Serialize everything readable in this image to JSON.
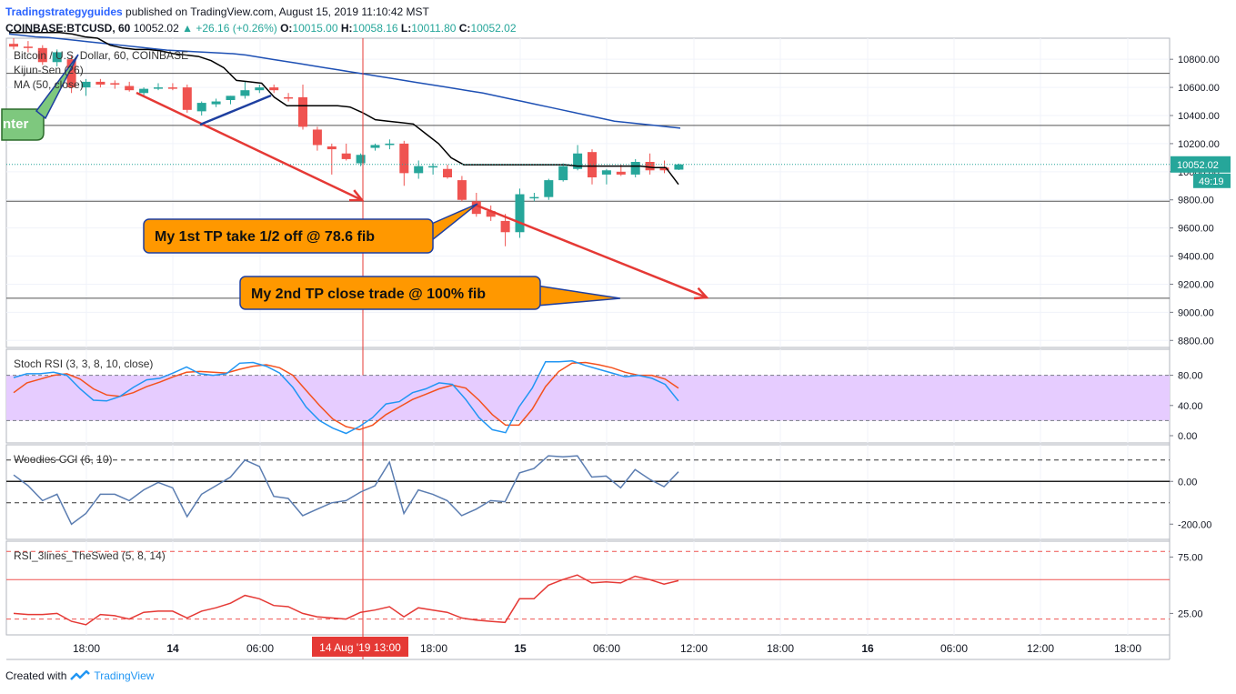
{
  "header": {
    "publisher": "Tradingstrategyguides",
    "published_text": "published on TradingView.com, August 15, 2019 11:10:42 MST",
    "symbol": "COINBASE:BTCUSD, 60",
    "last": "10052.02",
    "change": "+26.16 (+0.26%)",
    "o_label": "O:",
    "o": "10015.00",
    "h_label": "H:",
    "h": "10058.16",
    "l_label": "L:",
    "l": "10011.80",
    "c_label": "C:",
    "c": "10052.02"
  },
  "footer": {
    "created_with": "Created with",
    "brand": "TradingView"
  },
  "colors": {
    "up": "#26a69a",
    "down": "#ef5350",
    "ma": "#1e50b4",
    "kijun": "#000000",
    "orange": "#ff9800",
    "stoch_band": "#e6ccff",
    "arrow": "#e53935"
  },
  "chart_data": [
    {
      "type": "candlestick",
      "title": "Bitcoin / U.S. Dollar, 60, COINBASE",
      "indicators": [
        "Kijun-Sen (26)",
        "MA (50, close)"
      ],
      "ylim": [
        8750,
        10950
      ],
      "y_ticks": [
        "10800.00",
        "10600.00",
        "10400.00",
        "10200.00",
        "10000.00",
        "9800.00",
        "9600.00",
        "9400.00",
        "9200.00",
        "9000.00",
        "8800.00"
      ],
      "last_price_label": "10052.02",
      "countdown_label": "49:19",
      "horizontal_levels": [
        10700,
        10330,
        9790,
        9100
      ],
      "candles": [
        {
          "o": 10910,
          "h": 10950,
          "l": 10870,
          "c": 10890
        },
        {
          "o": 10890,
          "h": 10930,
          "l": 10850,
          "c": 10880
        },
        {
          "o": 10880,
          "h": 10900,
          "l": 10760,
          "c": 10780
        },
        {
          "o": 10780,
          "h": 10870,
          "l": 10750,
          "c": 10850
        },
        {
          "o": 10800,
          "h": 10830,
          "l": 10560,
          "c": 10600
        },
        {
          "o": 10600,
          "h": 10660,
          "l": 10540,
          "c": 10640
        },
        {
          "o": 10640,
          "h": 10660,
          "l": 10600,
          "c": 10620
        },
        {
          "o": 10630,
          "h": 10650,
          "l": 10590,
          "c": 10620
        },
        {
          "o": 10610,
          "h": 10640,
          "l": 10570,
          "c": 10580
        },
        {
          "o": 10560,
          "h": 10600,
          "l": 10540,
          "c": 10590
        },
        {
          "o": 10600,
          "h": 10630,
          "l": 10580,
          "c": 10600
        },
        {
          "o": 10600,
          "h": 10630,
          "l": 10580,
          "c": 10590
        },
        {
          "o": 10600,
          "h": 10620,
          "l": 10420,
          "c": 10440
        },
        {
          "o": 10430,
          "h": 10500,
          "l": 10400,
          "c": 10490
        },
        {
          "o": 10480,
          "h": 10520,
          "l": 10460,
          "c": 10500
        },
        {
          "o": 10510,
          "h": 10540,
          "l": 10480,
          "c": 10540
        },
        {
          "o": 10540,
          "h": 10640,
          "l": 10520,
          "c": 10580
        },
        {
          "o": 10580,
          "h": 10620,
          "l": 10560,
          "c": 10600
        },
        {
          "o": 10600,
          "h": 10620,
          "l": 10560,
          "c": 10580
        },
        {
          "o": 10530,
          "h": 10560,
          "l": 10500,
          "c": 10520
        },
        {
          "o": 10530,
          "h": 10620,
          "l": 10300,
          "c": 10320
        },
        {
          "o": 10300,
          "h": 10320,
          "l": 10150,
          "c": 10190
        },
        {
          "o": 10180,
          "h": 10200,
          "l": 9980,
          "c": 10160
        },
        {
          "o": 10130,
          "h": 10200,
          "l": 10080,
          "c": 10090
        },
        {
          "o": 10060,
          "h": 10130,
          "l": 10040,
          "c": 10120
        },
        {
          "o": 10170,
          "h": 10200,
          "l": 10150,
          "c": 10190
        },
        {
          "o": 10190,
          "h": 10230,
          "l": 10160,
          "c": 10200
        },
        {
          "o": 10200,
          "h": 10220,
          "l": 9900,
          "c": 9990
        },
        {
          "o": 9990,
          "h": 10080,
          "l": 9950,
          "c": 10040
        },
        {
          "o": 10040,
          "h": 10060,
          "l": 9980,
          "c": 10040
        },
        {
          "o": 10020,
          "h": 10050,
          "l": 9950,
          "c": 9960
        },
        {
          "o": 9940,
          "h": 9970,
          "l": 9790,
          "c": 9800
        },
        {
          "o": 9790,
          "h": 9850,
          "l": 9680,
          "c": 9700
        },
        {
          "o": 9720,
          "h": 9760,
          "l": 9650,
          "c": 9680
        },
        {
          "o": 9650,
          "h": 9700,
          "l": 9470,
          "c": 9570
        },
        {
          "o": 9570,
          "h": 9880,
          "l": 9530,
          "c": 9840
        },
        {
          "o": 9820,
          "h": 9850,
          "l": 9790,
          "c": 9820
        },
        {
          "o": 9820,
          "h": 9950,
          "l": 9800,
          "c": 9940
        },
        {
          "o": 9940,
          "h": 10060,
          "l": 9930,
          "c": 10040
        },
        {
          "o": 10020,
          "h": 10190,
          "l": 10010,
          "c": 10130
        },
        {
          "o": 10140,
          "h": 10160,
          "l": 9910,
          "c": 9960
        },
        {
          "o": 9980,
          "h": 10020,
          "l": 9910,
          "c": 10010
        },
        {
          "o": 10000,
          "h": 10050,
          "l": 9970,
          "c": 9980
        },
        {
          "o": 9980,
          "h": 10090,
          "l": 9960,
          "c": 10070
        },
        {
          "o": 10070,
          "h": 10130,
          "l": 9980,
          "c": 10010
        },
        {
          "o": 10030,
          "h": 10080,
          "l": 9990,
          "c": 10010
        },
        {
          "o": 10015,
          "h": 10058,
          "l": 10012,
          "c": 10052
        }
      ],
      "ma": [
        10980,
        10970,
        10960,
        10955,
        10945,
        10935,
        10925,
        10915,
        10905,
        10895,
        10885,
        10875,
        10865,
        10860,
        10855,
        10850,
        10845,
        10840,
        10830,
        10815,
        10800,
        10785,
        10770,
        10755,
        10740,
        10725,
        10710,
        10695,
        10680,
        10665,
        10650,
        10635,
        10620,
        10605,
        10590,
        10575,
        10560,
        10540,
        10520,
        10500,
        10480,
        10460,
        10440,
        10420,
        10400,
        10380,
        10360,
        10350,
        10340,
        10330,
        10320,
        10310
      ],
      "kijun": [
        10990,
        10990,
        10990,
        10990,
        10990,
        10980,
        10960,
        10950,
        10900,
        10880,
        10870,
        10870,
        10860,
        10840,
        10830,
        10820,
        10790,
        10740,
        10650,
        10640,
        10630,
        10530,
        10470,
        10470,
        10470,
        10470,
        10470,
        10460,
        10420,
        10370,
        10360,
        10350,
        10340,
        10270,
        10200,
        10100,
        10050,
        10050,
        10050,
        10050,
        10050,
        10050,
        10050,
        10050,
        10050,
        10040,
        10040,
        10040,
        10040,
        10040,
        10040,
        10030,
        10030,
        9910
      ],
      "annotations": [
        {
          "text": "nter",
          "note": "partially visible green callout at left edge"
        },
        {
          "text": "My 1st TP take 1/2 off @ 78.6 fib",
          "level": 9790
        },
        {
          "text": "My 2nd TP close trade @ 100% fib",
          "level": 9100
        }
      ],
      "vertical_marker_label": "14 Aug '19   13:00"
    },
    {
      "type": "line",
      "title": "Stoch RSI (3, 3, 8, 10, close)",
      "ylim": [
        0,
        100
      ],
      "y_ticks": [
        "80.00",
        "40.00",
        "0.00"
      ],
      "band": [
        20,
        80
      ],
      "series": [
        {
          "values": [
            77,
            82,
            82,
            84,
            80,
            62,
            47,
            46,
            52,
            64,
            74,
            76,
            83,
            91,
            82,
            80,
            82,
            96,
            97,
            92,
            83,
            64,
            38,
            20,
            10,
            3,
            12,
            24,
            42,
            45,
            57,
            62,
            70,
            68,
            48,
            24,
            8,
            4,
            38,
            63,
            98,
            98,
            99,
            93,
            88,
            83,
            78,
            80,
            76,
            68,
            46
          ]
        },
        {
          "values": [
            57,
            70,
            75,
            80,
            82,
            75,
            62,
            54,
            52,
            57,
            65,
            71,
            78,
            84,
            85,
            84,
            83,
            88,
            92,
            94,
            90,
            80,
            60,
            40,
            22,
            12,
            8,
            14,
            28,
            38,
            48,
            55,
            62,
            67,
            63,
            47,
            28,
            14,
            14,
            35,
            65,
            85,
            96,
            97,
            94,
            90,
            84,
            80,
            80,
            75,
            63
          ]
        }
      ]
    },
    {
      "type": "line",
      "title": "Woodies CCI (6, 10)",
      "ylim": [
        -250,
        150
      ],
      "y_ticks": [
        "0.00",
        "-200.00"
      ],
      "dashed_levels": [
        100,
        -100
      ],
      "series": [
        {
          "values": [
            30,
            -20,
            -90,
            -60,
            -200,
            -150,
            -60,
            -60,
            -90,
            -40,
            -5,
            -30,
            -165,
            -60,
            -20,
            20,
            100,
            70,
            -70,
            -80,
            -160,
            -130,
            -100,
            -90,
            -50,
            -20,
            90,
            -150,
            -40,
            -60,
            -90,
            -160,
            -130,
            -90,
            -95,
            40,
            60,
            120,
            115,
            120,
            20,
            25,
            -30,
            55,
            10,
            -25,
            45
          ]
        }
      ]
    },
    {
      "type": "line",
      "title": "RSI_3lines_TheSwed (5, 8, 14)",
      "ylim": [
        10,
        85
      ],
      "y_ticks": [
        "75.00",
        "25.00"
      ],
      "levels": [
        80,
        20,
        55
      ],
      "series": [
        {
          "values": [
            25,
            24,
            24,
            25,
            18,
            15,
            24,
            23,
            20,
            26,
            27,
            27,
            21,
            27,
            30,
            34,
            41,
            38,
            32,
            31,
            25,
            22,
            21,
            20,
            26,
            28,
            31,
            22,
            30,
            28,
            26,
            21,
            19,
            18,
            17,
            38,
            38,
            50,
            55,
            59,
            52,
            53,
            52,
            58,
            55,
            51,
            54
          ]
        }
      ]
    }
  ],
  "x_axis": {
    "labels": [
      {
        "text": "18:00",
        "bold": false
      },
      {
        "text": "14",
        "bold": true
      },
      {
        "text": "06:00",
        "bold": false
      },
      {
        "text": "18:00",
        "bold": false
      },
      {
        "text": "15",
        "bold": true
      },
      {
        "text": "06:00",
        "bold": false
      },
      {
        "text": "12:00",
        "bold": false
      },
      {
        "text": "18:00",
        "bold": false
      },
      {
        "text": "16",
        "bold": true
      },
      {
        "text": "06:00",
        "bold": false
      },
      {
        "text": "12:00",
        "bold": false
      },
      {
        "text": "18:00",
        "bold": false
      }
    ]
  }
}
